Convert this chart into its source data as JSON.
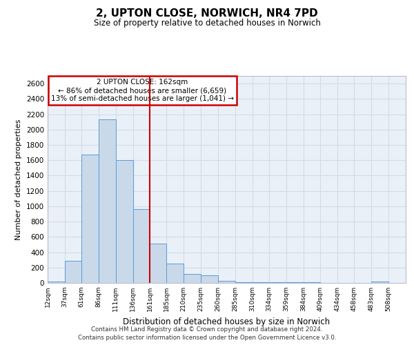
{
  "title": "2, UPTON CLOSE, NORWICH, NR4 7PD",
  "subtitle": "Size of property relative to detached houses in Norwich",
  "xlabel": "Distribution of detached houses by size in Norwich",
  "ylabel": "Number of detached properties",
  "bar_left_edges": [
    12,
    37,
    61,
    86,
    111,
    136,
    161,
    185,
    210,
    235,
    260,
    285,
    310,
    334,
    359,
    384,
    409,
    434,
    458,
    483
  ],
  "bar_widths": [
    25,
    24,
    25,
    25,
    25,
    25,
    24,
    25,
    25,
    25,
    25,
    25,
    24,
    25,
    25,
    25,
    25,
    24,
    25,
    25
  ],
  "bar_heights": [
    20,
    290,
    1670,
    2130,
    1600,
    960,
    510,
    250,
    120,
    100,
    30,
    10,
    10,
    5,
    5,
    5,
    2,
    2,
    2,
    20
  ],
  "bar_facecolor": "#c9d9ea",
  "bar_edgecolor": "#5b9bd5",
  "grid_color": "#d0dde8",
  "bg_color": "#eaf0f8",
  "vline_x": 161,
  "vline_color": "#cc0000",
  "annotation_title": "2 UPTON CLOSE: 162sqm",
  "annotation_line1": "← 86% of detached houses are smaller (6,659)",
  "annotation_line2": "13% of semi-detached houses are larger (1,041) →",
  "annotation_box_facecolor": "white",
  "annotation_box_edgecolor": "#cc0000",
  "ylim": [
    0,
    2700
  ],
  "yticks": [
    0,
    200,
    400,
    600,
    800,
    1000,
    1200,
    1400,
    1600,
    1800,
    2000,
    2200,
    2400,
    2600
  ],
  "xtick_positions": [
    12,
    37,
    61,
    86,
    111,
    136,
    161,
    185,
    210,
    235,
    260,
    285,
    310,
    334,
    359,
    384,
    409,
    434,
    458,
    483,
    508
  ],
  "xtick_labels": [
    "12sqm",
    "37sqm",
    "61sqm",
    "86sqm",
    "111sqm",
    "136sqm",
    "161sqm",
    "185sqm",
    "210sqm",
    "235sqm",
    "260sqm",
    "285sqm",
    "310sqm",
    "334sqm",
    "359sqm",
    "384sqm",
    "409sqm",
    "434sqm",
    "458sqm",
    "483sqm",
    "508sqm"
  ],
  "xlim_left": 12,
  "xlim_right": 533,
  "footer1": "Contains HM Land Registry data © Crown copyright and database right 2024.",
  "footer2": "Contains public sector information licensed under the Open Government Licence v3.0."
}
